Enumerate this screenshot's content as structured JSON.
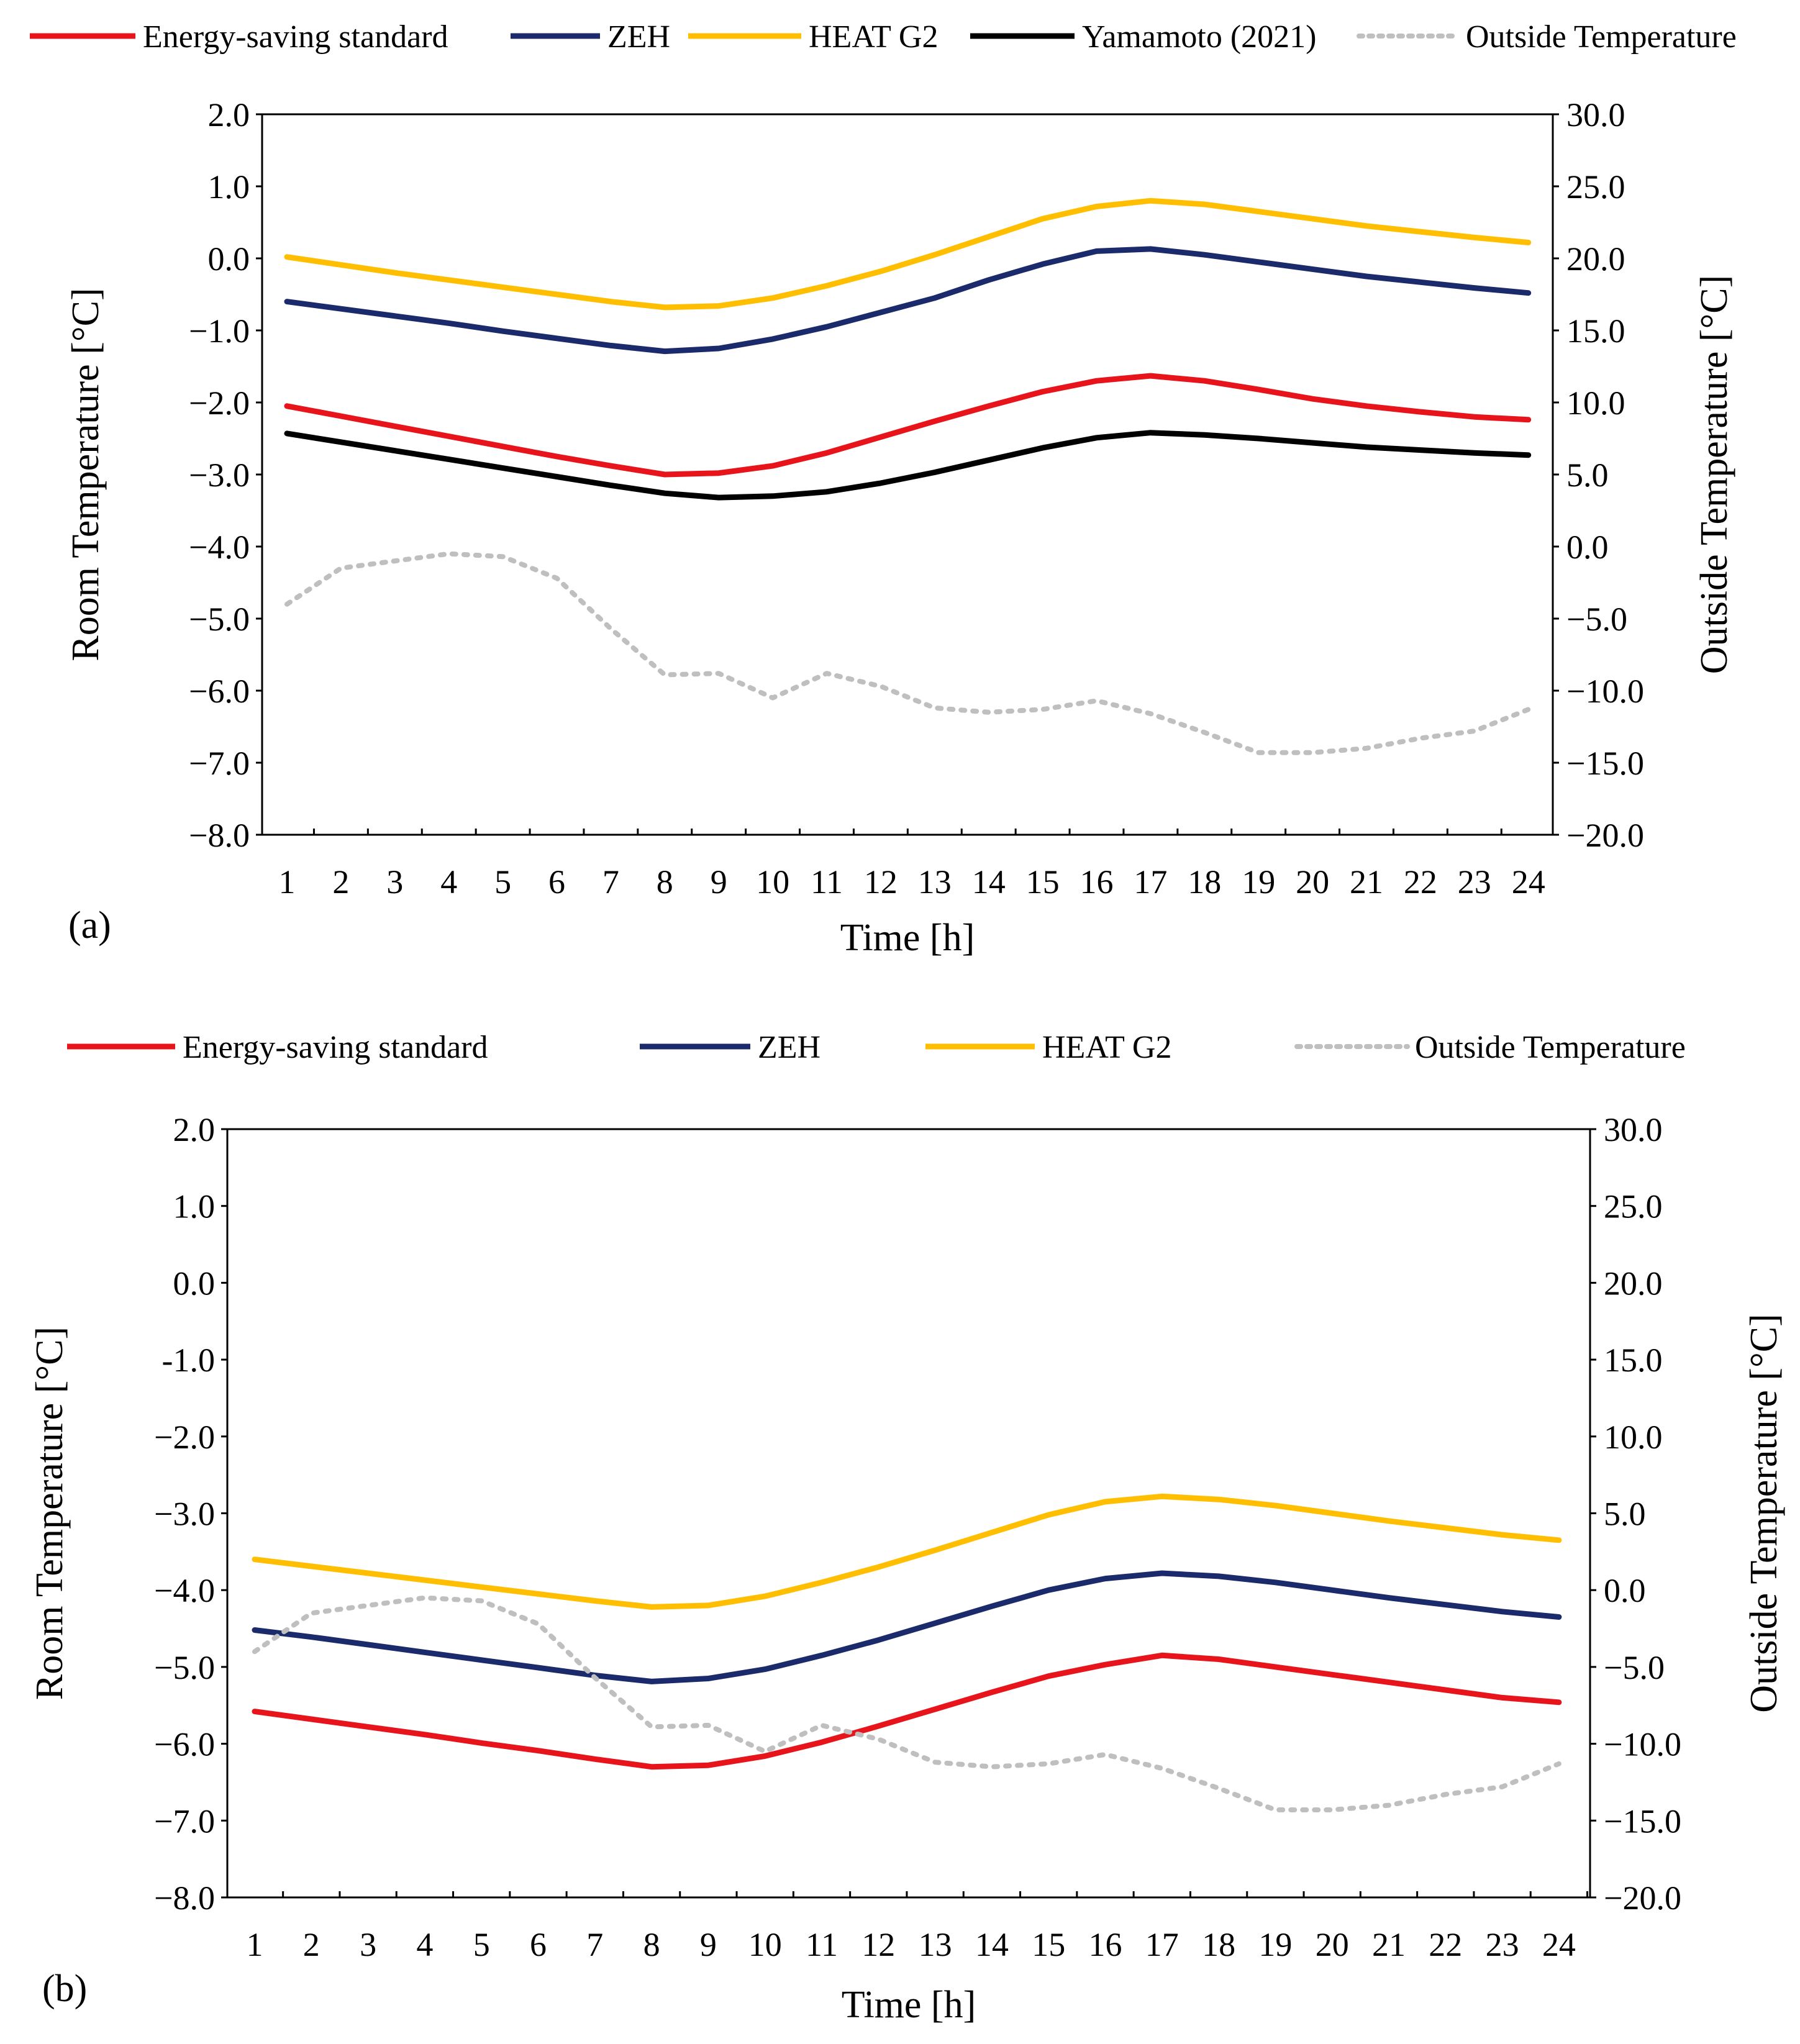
{
  "chart_data": [
    {
      "panel": "(a)",
      "type": "line",
      "title": "",
      "xlabel": "Time [h]",
      "ylabel": "Room Temperature [°C]",
      "y2label": "Outside Temperature [°C]",
      "x": [
        1,
        2,
        3,
        4,
        5,
        6,
        7,
        8,
        9,
        10,
        11,
        12,
        13,
        14,
        15,
        16,
        17,
        18,
        19,
        20,
        21,
        22,
        23,
        24
      ],
      "x_tick_labels": [
        "1",
        "2",
        "3",
        "4",
        "5",
        "6",
        "7",
        "8",
        "9",
        "10",
        "11",
        "12",
        "13",
        "14",
        "15",
        "16",
        "17",
        "18",
        "19",
        "20",
        "21",
        "22",
        "23",
        "24"
      ],
      "ylim": [
        -8.0,
        2.0
      ],
      "y_tick_labels": [
        "2.0",
        "1.0",
        "0.0",
        "−1.0",
        "−2.0",
        "−3.0",
        "−4.0",
        "−5.0",
        "−6.0",
        "−7.0",
        "−8.0"
      ],
      "y2lim": [
        -20.0,
        30.0
      ],
      "y2_tick_labels": [
        "30.0",
        "25.0",
        "20.0",
        "15.0",
        "10.0",
        "5.0",
        "0.0",
        "−5.0",
        "−10.0",
        "−15.0",
        "−20.0"
      ],
      "grid": false,
      "legend_position": "top",
      "series": [
        {
          "name": "Energy-saving standard",
          "color": "#e8141b",
          "axis": "left",
          "style": "solid",
          "values": [
            -2.05,
            -2.19,
            -2.33,
            -2.47,
            -2.61,
            -2.75,
            -2.88,
            -3.0,
            -2.98,
            -2.88,
            -2.7,
            -2.48,
            -2.26,
            -2.05,
            -1.85,
            -1.7,
            -1.63,
            -1.7,
            -1.82,
            -1.95,
            -2.05,
            -2.13,
            -2.2,
            -2.24
          ]
        },
        {
          "name": "ZEH",
          "color": "#1b2a6b",
          "axis": "left",
          "style": "solid",
          "values": [
            -0.6,
            -0.7,
            -0.8,
            -0.9,
            -1.01,
            -1.11,
            -1.21,
            -1.29,
            -1.25,
            -1.12,
            -0.95,
            -0.75,
            -0.55,
            -0.3,
            -0.08,
            0.1,
            0.13,
            0.05,
            -0.05,
            -0.15,
            -0.25,
            -0.33,
            -0.41,
            -0.48
          ]
        },
        {
          "name": "HEAT G2",
          "color": "#ffbf00",
          "axis": "left",
          "style": "solid",
          "values": [
            0.02,
            -0.09,
            -0.2,
            -0.3,
            -0.4,
            -0.5,
            -0.6,
            -0.68,
            -0.66,
            -0.55,
            -0.38,
            -0.18,
            0.05,
            0.3,
            0.55,
            0.72,
            0.8,
            0.75,
            0.65,
            0.55,
            0.45,
            0.37,
            0.29,
            0.22
          ]
        },
        {
          "name": "Yamamoto (2021)",
          "color": "#000000",
          "axis": "left",
          "style": "solid",
          "values": [
            -2.43,
            -2.55,
            -2.67,
            -2.79,
            -2.91,
            -3.03,
            -3.15,
            -3.26,
            -3.32,
            -3.3,
            -3.24,
            -3.12,
            -2.97,
            -2.8,
            -2.63,
            -2.49,
            -2.42,
            -2.45,
            -2.5,
            -2.56,
            -2.62,
            -2.66,
            -2.7,
            -2.73
          ]
        },
        {
          "name": "Outside Temperature",
          "color": "#bfbfbf",
          "axis": "right",
          "style": "dotted",
          "values": [
            -4.0,
            -1.5,
            -1.0,
            -0.5,
            -0.7,
            -2.2,
            -5.7,
            -8.9,
            -8.8,
            -10.5,
            -8.8,
            -9.7,
            -11.2,
            -11.5,
            -11.3,
            -10.7,
            -11.6,
            -12.9,
            -14.3,
            -14.3,
            -14.0,
            -13.3,
            -12.8,
            -11.3
          ]
        }
      ]
    },
    {
      "panel": "(b)",
      "type": "line",
      "title": "",
      "xlabel": "Time [h]",
      "ylabel": "Room Temperature [°C]",
      "y2label": "Outside Temperature [°C]",
      "x": [
        1,
        2,
        3,
        4,
        5,
        6,
        7,
        8,
        9,
        10,
        11,
        12,
        13,
        14,
        15,
        16,
        17,
        18,
        19,
        20,
        21,
        22,
        23,
        24
      ],
      "x_tick_labels": [
        "1",
        "2",
        "3",
        "4",
        "5",
        "6",
        "7",
        "8",
        "9",
        "10",
        "11",
        "12",
        "13",
        "14",
        "15",
        "16",
        "17",
        "18",
        "19",
        "20",
        "21",
        "22",
        "23",
        "24"
      ],
      "ylim": [
        -8.0,
        2.0
      ],
      "y_tick_labels": [
        "2.0",
        "1.0",
        "0.0",
        "-1.0",
        "−2.0",
        "−3.0",
        "−4.0",
        "−5.0",
        "−6.0",
        "−7.0",
        "−8.0"
      ],
      "y2lim": [
        -20.0,
        30.0
      ],
      "y2_tick_labels": [
        "30.0",
        "25.0",
        "20.0",
        "15.0",
        "10.0",
        "5.0",
        "0.0",
        "−5.0",
        "−10.0",
        "−15.0",
        "−20.0"
      ],
      "grid": false,
      "legend_position": "top",
      "series": [
        {
          "name": "Energy-saving standard",
          "color": "#e8141b",
          "axis": "left",
          "style": "solid",
          "values": [
            -5.58,
            -5.68,
            -5.78,
            -5.88,
            -5.99,
            -6.09,
            -6.2,
            -6.3,
            -6.28,
            -6.16,
            -5.98,
            -5.77,
            -5.55,
            -5.33,
            -5.12,
            -4.97,
            -4.85,
            -4.9,
            -5.0,
            -5.1,
            -5.2,
            -5.3,
            -5.4,
            -5.46
          ]
        },
        {
          "name": "ZEH",
          "color": "#1b2a6b",
          "axis": "left",
          "style": "solid",
          "values": [
            -4.52,
            -4.61,
            -4.71,
            -4.81,
            -4.91,
            -5.01,
            -5.11,
            -5.19,
            -5.15,
            -5.03,
            -4.85,
            -4.65,
            -4.43,
            -4.21,
            -4.0,
            -3.85,
            -3.78,
            -3.82,
            -3.9,
            -4.0,
            -4.1,
            -4.19,
            -4.28,
            -4.35
          ]
        },
        {
          "name": "HEAT G2",
          "color": "#ffbf00",
          "axis": "left",
          "style": "solid",
          "values": [
            -3.6,
            -3.69,
            -3.78,
            -3.87,
            -3.96,
            -4.05,
            -4.14,
            -4.22,
            -4.2,
            -4.08,
            -3.9,
            -3.7,
            -3.48,
            -3.25,
            -3.02,
            -2.85,
            -2.78,
            -2.82,
            -2.9,
            -3.0,
            -3.1,
            -3.19,
            -3.28,
            -3.35
          ]
        },
        {
          "name": "Outside Temperature",
          "color": "#bfbfbf",
          "axis": "right",
          "style": "dotted",
          "values": [
            -4.0,
            -1.5,
            -1.0,
            -0.5,
            -0.7,
            -2.2,
            -5.7,
            -8.9,
            -8.8,
            -10.5,
            -8.8,
            -9.7,
            -11.2,
            -11.5,
            -11.3,
            -10.7,
            -11.6,
            -12.9,
            -14.3,
            -14.3,
            -14.0,
            -13.3,
            -12.8,
            -11.3
          ]
        }
      ]
    }
  ]
}
